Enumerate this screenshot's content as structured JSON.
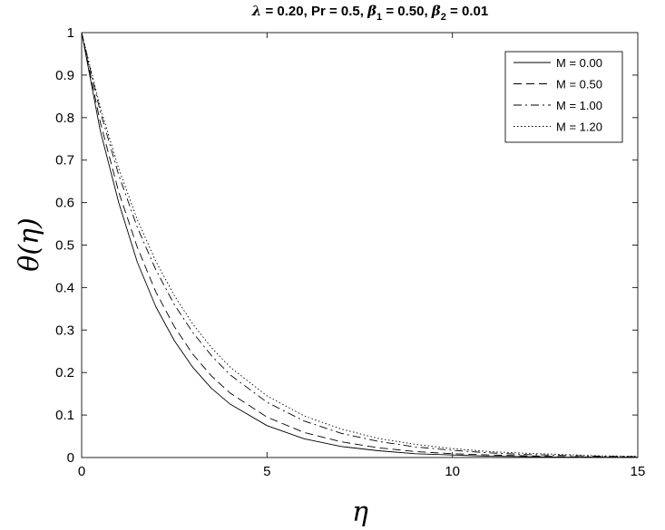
{
  "chart_data": {
    "type": "line",
    "title_parts": [
      {
        "text": "λ",
        "style": "italic"
      },
      {
        "text": " = 0.20, Pr = 0.5, "
      },
      {
        "text": "β",
        "style": "italic"
      },
      {
        "text": "1",
        "style": "sub"
      },
      {
        "text": " = 0.50, "
      },
      {
        "text": "β",
        "style": "italic"
      },
      {
        "text": "2",
        "style": "sub"
      },
      {
        "text": " = 0.01"
      }
    ],
    "xlabel": "η",
    "ylabel": "θ(η)",
    "xlim": [
      0,
      15
    ],
    "ylim": [
      0,
      1
    ],
    "xticks": [
      0,
      5,
      10,
      15
    ],
    "yticks": [
      0,
      0.1,
      0.2,
      0.3,
      0.4,
      0.5,
      0.6,
      0.7,
      0.8,
      0.9,
      1
    ],
    "xtick_labels": [
      "0",
      "5",
      "10",
      "15"
    ],
    "ytick_labels": [
      "0",
      "0.1",
      "0.2",
      "0.3",
      "0.4",
      "0.5",
      "0.6",
      "0.7",
      "0.8",
      "0.9",
      "1"
    ],
    "grid": false,
    "legend_position": "top-right",
    "line_color": "#000000",
    "series": [
      {
        "name": "M = 0.00",
        "dash": "solid",
        "x": [
          0,
          0.5,
          1,
          1.5,
          2,
          2.5,
          3,
          3.5,
          4,
          5,
          6,
          7,
          8,
          9,
          10,
          11,
          12,
          13,
          14,
          15
        ],
        "y": [
          1.0,
          0.77,
          0.6,
          0.46,
          0.355,
          0.275,
          0.212,
          0.163,
          0.126,
          0.075,
          0.044,
          0.026,
          0.016,
          0.009,
          0.006,
          0.003,
          0.002,
          0.001,
          0.001,
          0.0
        ]
      },
      {
        "name": "M = 0.50",
        "dash": "dashed",
        "x": [
          0,
          0.5,
          1,
          1.5,
          2,
          2.5,
          3,
          3.5,
          4,
          5,
          6,
          7,
          8,
          9,
          10,
          11,
          12,
          13,
          14,
          15
        ],
        "y": [
          1.0,
          0.79,
          0.625,
          0.495,
          0.39,
          0.308,
          0.243,
          0.192,
          0.152,
          0.095,
          0.059,
          0.037,
          0.023,
          0.014,
          0.009,
          0.006,
          0.004,
          0.002,
          0.001,
          0.001
        ]
      },
      {
        "name": "M = 1.00",
        "dash": "dashdot",
        "x": [
          0,
          0.5,
          1,
          1.5,
          2,
          2.5,
          3,
          3.5,
          4,
          5,
          6,
          7,
          8,
          9,
          10,
          11,
          12,
          13,
          14,
          15
        ],
        "y": [
          1.0,
          0.815,
          0.665,
          0.542,
          0.442,
          0.36,
          0.294,
          0.24,
          0.195,
          0.13,
          0.086,
          0.057,
          0.038,
          0.025,
          0.017,
          0.011,
          0.007,
          0.005,
          0.003,
          0.002
        ]
      },
      {
        "name": "M = 1.20",
        "dash": "dotted",
        "x": [
          0,
          0.5,
          1,
          1.5,
          2,
          2.5,
          3,
          3.5,
          4,
          5,
          6,
          7,
          8,
          9,
          10,
          11,
          12,
          13,
          14,
          15
        ],
        "y": [
          1.0,
          0.825,
          0.68,
          0.56,
          0.462,
          0.381,
          0.314,
          0.259,
          0.213,
          0.145,
          0.098,
          0.067,
          0.045,
          0.031,
          0.021,
          0.014,
          0.01,
          0.007,
          0.004,
          0.003
        ]
      }
    ]
  }
}
